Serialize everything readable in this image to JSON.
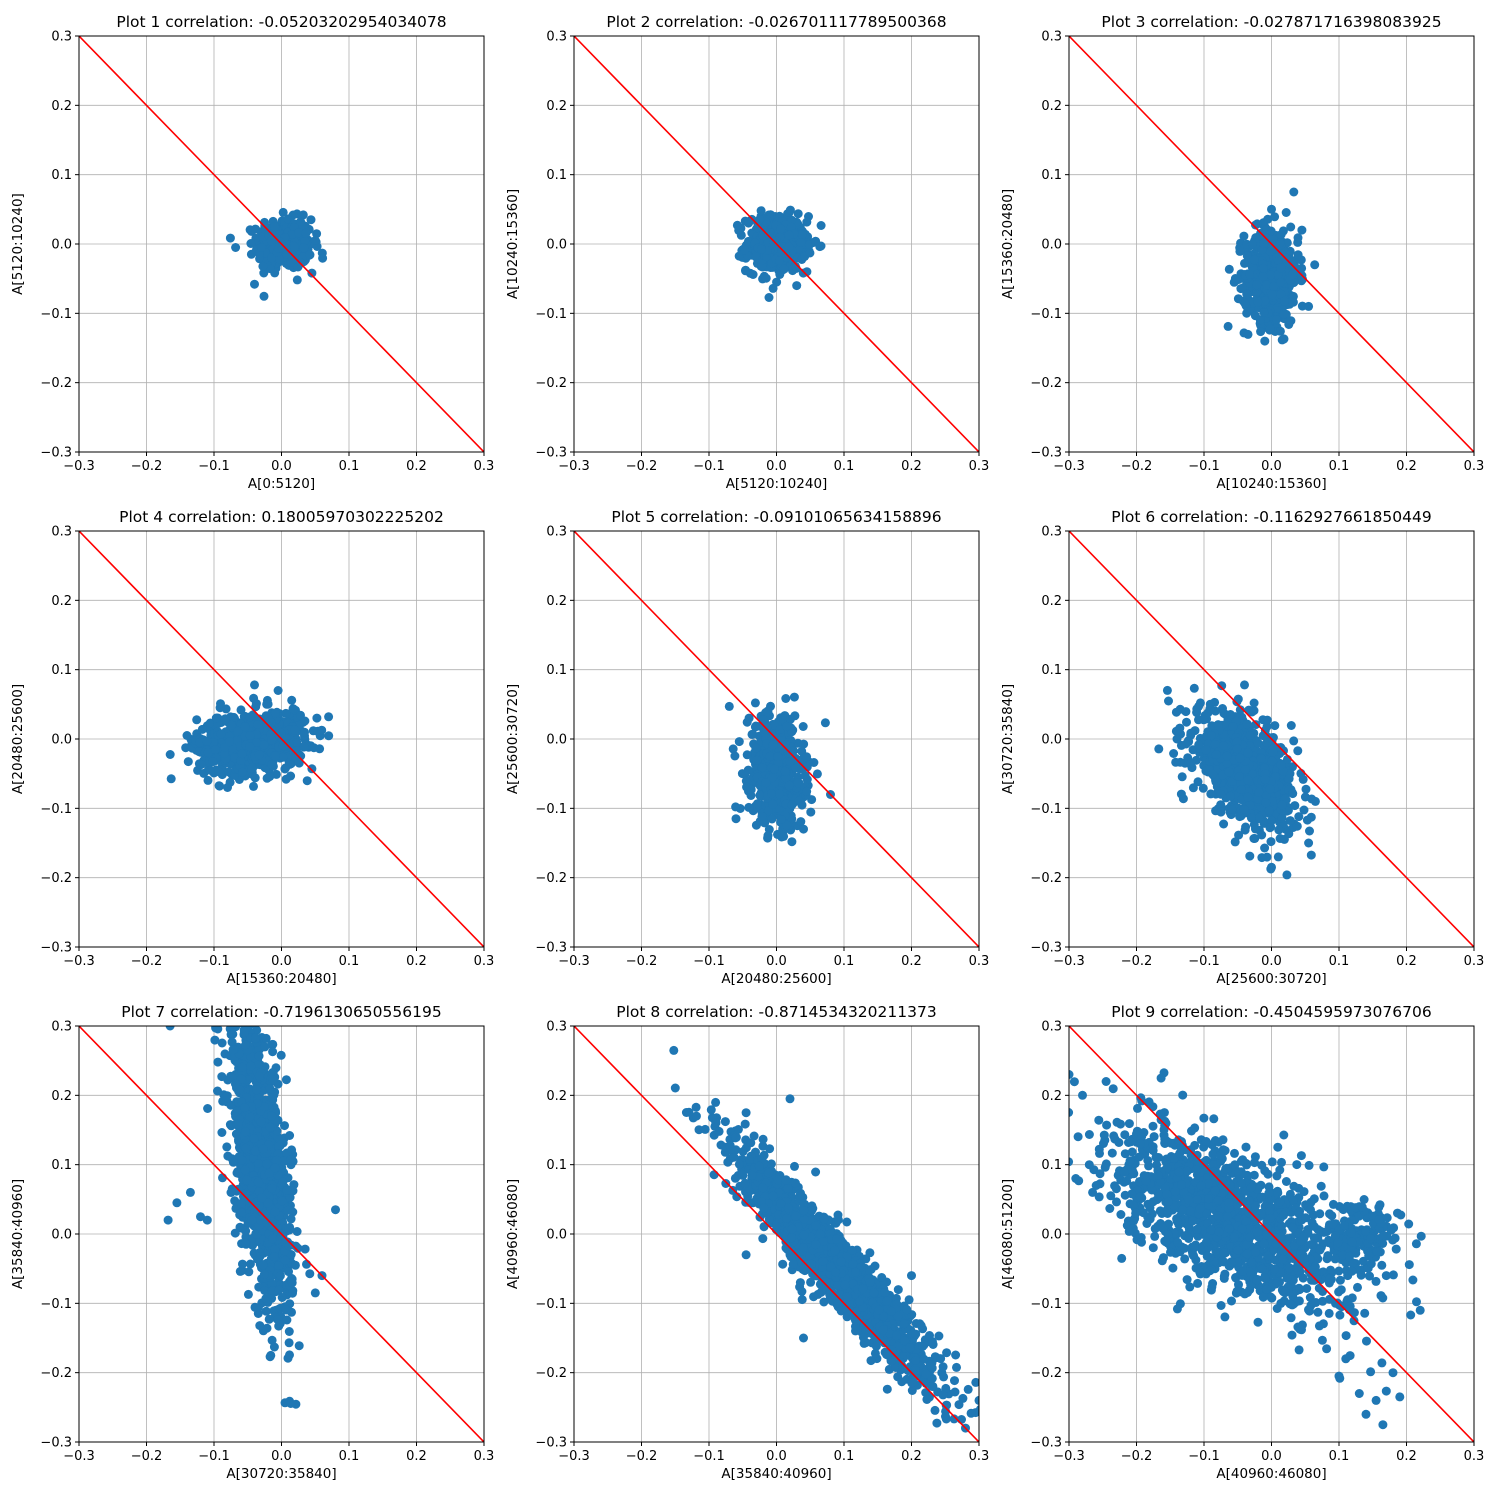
{
  "chart_data": [
    {
      "type": "scatter",
      "title": "Plot 1 correlation: -0.05203202954034078",
      "xlabel": "A[0:5120]",
      "ylabel": "A[5120:10240]",
      "xlim": [
        -0.3,
        0.3
      ],
      "ylim": [
        -0.3,
        0.3
      ],
      "xticks": [
        "−0.3",
        "−0.2",
        "−0.1",
        "0.0",
        "0.1",
        "0.2",
        "0.3"
      ],
      "yticks": [
        "−0.3",
        "−0.2",
        "−0.1",
        "0.0",
        "0.1",
        "0.2",
        "0.3"
      ],
      "grid": true,
      "reference_line": {
        "x": [
          -0.3,
          0.3
        ],
        "y": [
          0.3,
          -0.3
        ],
        "color": "#ff0000"
      },
      "point_color": "#1f77b4",
      "cloud": {
        "cx": 0.005,
        "cy": 0.0,
        "sx": 0.02,
        "sy": 0.018,
        "slope": 0.0,
        "n": 420
      },
      "outliers": [
        [
          -0.068,
          -0.005
        ],
        [
          -0.04,
          -0.058
        ],
        [
          0.05,
          0.005
        ],
        [
          0.045,
          -0.042
        ]
      ]
    },
    {
      "type": "scatter",
      "title": "Plot 2 correlation: -0.026701117789500368",
      "xlabel": "A[5120:10240]",
      "ylabel": "A[10240:15360]",
      "xlim": [
        -0.3,
        0.3
      ],
      "ylim": [
        -0.3,
        0.3
      ],
      "xticks": [
        "−0.3",
        "−0.2",
        "−0.1",
        "0.0",
        "0.1",
        "0.2",
        "0.3"
      ],
      "yticks": [
        "−0.3",
        "−0.2",
        "−0.1",
        "0.0",
        "0.1",
        "0.2",
        "0.3"
      ],
      "grid": true,
      "reference_line": {
        "x": [
          -0.3,
          0.3
        ],
        "y": [
          0.3,
          -0.3
        ],
        "color": "#ff0000"
      },
      "point_color": "#1f77b4",
      "cloud": {
        "cx": 0.0,
        "cy": 0.0,
        "sx": 0.022,
        "sy": 0.02,
        "slope": 0.0,
        "n": 420
      },
      "outliers": [
        [
          -0.058,
          0.027
        ],
        [
          -0.005,
          -0.064
        ],
        [
          0.058,
          0.004
        ],
        [
          0.045,
          -0.04
        ]
      ]
    },
    {
      "type": "scatter",
      "title": "Plot 3 correlation: -0.027871716398083925",
      "xlabel": "A[10240:15360]",
      "ylabel": "A[15360:20480]",
      "xlim": [
        -0.3,
        0.3
      ],
      "ylim": [
        -0.3,
        0.3
      ],
      "xticks": [
        "−0.3",
        "−0.2",
        "−0.1",
        "0.0",
        "0.1",
        "0.2",
        "0.3"
      ],
      "yticks": [
        "−0.3",
        "−0.2",
        "−0.1",
        "0.0",
        "0.1",
        "0.2",
        "0.3"
      ],
      "grid": true,
      "reference_line": {
        "x": [
          -0.3,
          0.3
        ],
        "y": [
          0.3,
          -0.3
        ],
        "color": "#ff0000"
      },
      "point_color": "#1f77b4",
      "cloud": {
        "cx": 0.0,
        "cy": -0.045,
        "sx": 0.02,
        "sy": 0.035,
        "slope": 0.0,
        "n": 520
      },
      "outliers": [
        [
          -0.04,
          -0.028
        ],
        [
          -0.01,
          -0.14
        ],
        [
          0.055,
          -0.09
        ],
        [
          0.045,
          0.02
        ],
        [
          0.0,
          0.05
        ]
      ]
    },
    {
      "type": "scatter",
      "title": "Plot 4 correlation: 0.18005970302225202",
      "xlabel": "A[15360:20480]",
      "ylabel": "A[20480:25600]",
      "xlim": [
        -0.3,
        0.3
      ],
      "ylim": [
        -0.3,
        0.3
      ],
      "xticks": [
        "−0.3",
        "−0.2",
        "−0.1",
        "0.0",
        "0.1",
        "0.2",
        "0.3"
      ],
      "yticks": [
        "−0.3",
        "−0.2",
        "−0.1",
        "0.0",
        "0.1",
        "0.2",
        "0.3"
      ],
      "grid": true,
      "reference_line": {
        "x": [
          -0.3,
          0.3
        ],
        "y": [
          0.3,
          -0.3
        ],
        "color": "#ff0000"
      },
      "point_color": "#1f77b4",
      "cloud": {
        "cx": -0.045,
        "cy": -0.005,
        "sx": 0.04,
        "sy": 0.022,
        "slope": 0.1,
        "n": 700
      },
      "outliers": [
        [
          -0.14,
          0.005
        ],
        [
          -0.08,
          -0.07
        ],
        [
          0.045,
          -0.043
        ],
        [
          -0.04,
          0.078
        ],
        [
          -0.005,
          0.07
        ]
      ]
    },
    {
      "type": "scatter",
      "title": "Plot 5 correlation: -0.09101065634158896",
      "xlabel": "A[20480:25600]",
      "ylabel": "A[25600:30720]",
      "xlim": [
        -0.3,
        0.3
      ],
      "ylim": [
        -0.3,
        0.3
      ],
      "xticks": [
        "−0.3",
        "−0.2",
        "−0.1",
        "0.0",
        "0.1",
        "0.2",
        "0.3"
      ],
      "yticks": [
        "−0.3",
        "−0.2",
        "−0.1",
        "0.0",
        "0.1",
        "0.2",
        "0.3"
      ],
      "grid": true,
      "reference_line": {
        "x": [
          -0.3,
          0.3
        ],
        "y": [
          0.3,
          -0.3
        ],
        "color": "#ff0000"
      },
      "point_color": "#1f77b4",
      "cloud": {
        "cx": 0.0,
        "cy": -0.045,
        "sx": 0.02,
        "sy": 0.038,
        "slope": -0.2,
        "n": 600
      },
      "outliers": [
        [
          -0.07,
          0.047
        ],
        [
          0.08,
          -0.08
        ],
        [
          -0.06,
          -0.115
        ],
        [
          0.04,
          -0.13
        ]
      ]
    },
    {
      "type": "scatter",
      "title": "Plot 6 correlation: -0.1162927661850449",
      "xlabel": "A[25600:30720]",
      "ylabel": "A[30720:35840]",
      "xlim": [
        -0.3,
        0.3
      ],
      "ylim": [
        -0.3,
        0.3
      ],
      "xticks": [
        "−0.3",
        "−0.2",
        "−0.1",
        "0.0",
        "0.1",
        "0.2",
        "0.3"
      ],
      "yticks": [
        "−0.3",
        "−0.2",
        "−0.1",
        "0.0",
        "0.1",
        "0.2",
        "0.3"
      ],
      "grid": true,
      "reference_line": {
        "x": [
          -0.3,
          0.3
        ],
        "y": [
          0.3,
          -0.3
        ],
        "color": "#ff0000"
      },
      "point_color": "#1f77b4",
      "cloud": {
        "cx": -0.04,
        "cy": -0.045,
        "sx": 0.038,
        "sy": 0.035,
        "slope": -0.5,
        "n": 850
      },
      "outliers": [
        [
          -0.14,
          0.0
        ],
        [
          0.0,
          -0.185
        ],
        [
          0.055,
          -0.15
        ],
        [
          0.065,
          -0.09
        ],
        [
          -0.04,
          0.078
        ],
        [
          0.01,
          -0.17
        ]
      ]
    },
    {
      "type": "scatter",
      "title": "Plot 7 correlation: -0.7196130650556195",
      "xlabel": "A[30720:35840]",
      "ylabel": "A[35840:40960]",
      "xlim": [
        -0.3,
        0.3
      ],
      "ylim": [
        -0.3,
        0.3
      ],
      "xticks": [
        "−0.3",
        "−0.2",
        "−0.1",
        "0.0",
        "0.1",
        "0.2",
        "0.3"
      ],
      "yticks": [
        "−0.3",
        "−0.2",
        "−0.1",
        "0.0",
        "0.1",
        "0.2",
        "0.3"
      ],
      "grid": true,
      "reference_line": {
        "x": [
          -0.3,
          0.3
        ],
        "y": [
          0.3,
          -0.3
        ],
        "color": "#ff0000"
      },
      "point_color": "#1f77b4",
      "cloud": {
        "cx": -0.03,
        "cy": 0.1,
        "sx": 0.022,
        "sy": 0.085,
        "slope": -2.6,
        "n": 1300
      },
      "outliers": [
        [
          -0.168,
          0.02
        ],
        [
          -0.155,
          0.045
        ],
        [
          -0.135,
          0.06
        ],
        [
          -0.12,
          0.025
        ],
        [
          -0.11,
          0.02
        ],
        [
          0.08,
          0.035
        ],
        [
          0.05,
          -0.085
        ],
        [
          0.06,
          -0.06
        ],
        [
          -0.165,
          0.3
        ]
      ]
    },
    {
      "type": "scatter",
      "title": "Plot 8 correlation: -0.8714534320211373",
      "xlabel": "A[35840:40960]",
      "ylabel": "A[40960:46080]",
      "xlim": [
        -0.3,
        0.3
      ],
      "ylim": [
        -0.3,
        0.3
      ],
      "xticks": [
        "−0.3",
        "−0.2",
        "−0.1",
        "0.0",
        "0.1",
        "0.2",
        "0.3"
      ],
      "yticks": [
        "−0.3",
        "−0.2",
        "−0.1",
        "0.0",
        "0.1",
        "0.2",
        "0.3"
      ],
      "grid": true,
      "reference_line": {
        "x": [
          -0.3,
          0.3
        ],
        "y": [
          0.3,
          -0.3
        ],
        "color": "#ff0000"
      },
      "point_color": "#1f77b4",
      "cloud": {
        "cx": 0.09,
        "cy": -0.05,
        "sx": 0.075,
        "sy": 0.028,
        "slope": -1.05,
        "n": 1500
      },
      "outliers": [
        [
          -0.085,
          0.148
        ],
        [
          -0.045,
          0.175
        ],
        [
          0.02,
          0.195
        ],
        [
          -0.045,
          -0.03
        ],
        [
          0.28,
          -0.28
        ],
        [
          0.3,
          -0.24
        ],
        [
          0.2,
          -0.06
        ],
        [
          0.04,
          -0.15
        ]
      ]
    },
    {
      "type": "scatter",
      "title": "Plot 9 correlation: -0.4504595973076706",
      "xlabel": "A[40960:46080]",
      "ylabel": "A[46080:51200]",
      "xlim": [
        -0.3,
        0.3
      ],
      "ylim": [
        -0.3,
        0.3
      ],
      "xticks": [
        "−0.3",
        "−0.2",
        "−0.1",
        "0.0",
        "0.1",
        "0.2",
        "0.3"
      ],
      "yticks": [
        "−0.3",
        "−0.2",
        "−0.1",
        "0.0",
        "0.1",
        "0.2",
        "0.3"
      ],
      "grid": true,
      "reference_line": {
        "x": [
          -0.3,
          0.3
        ],
        "y": [
          0.3,
          -0.3
        ],
        "color": "#ff0000"
      },
      "point_color": "#1f77b4",
      "cloud": {
        "cx": -0.06,
        "cy": 0.02,
        "sx": 0.085,
        "sy": 0.05,
        "slope": -0.45,
        "n": 1300
      },
      "cloud2": {
        "cx": 0.13,
        "cy": -0.005,
        "sx": 0.03,
        "sy": 0.025,
        "slope": 0.0,
        "n": 170
      },
      "outliers": [
        [
          -0.3,
          0.23
        ],
        [
          -0.28,
          0.2
        ],
        [
          -0.27,
          0.1
        ],
        [
          -0.265,
          0.06
        ],
        [
          -0.245,
          0.22
        ],
        [
          -0.29,
          0.08
        ],
        [
          0.1,
          -0.205
        ],
        [
          0.14,
          -0.26
        ],
        [
          0.165,
          -0.275
        ],
        [
          0.18,
          -0.2
        ],
        [
          0.19,
          -0.235
        ],
        [
          0.155,
          -0.24
        ],
        [
          0.11,
          -0.18
        ],
        [
          0.13,
          -0.23
        ],
        [
          0.17,
          -0.06
        ]
      ]
    }
  ]
}
